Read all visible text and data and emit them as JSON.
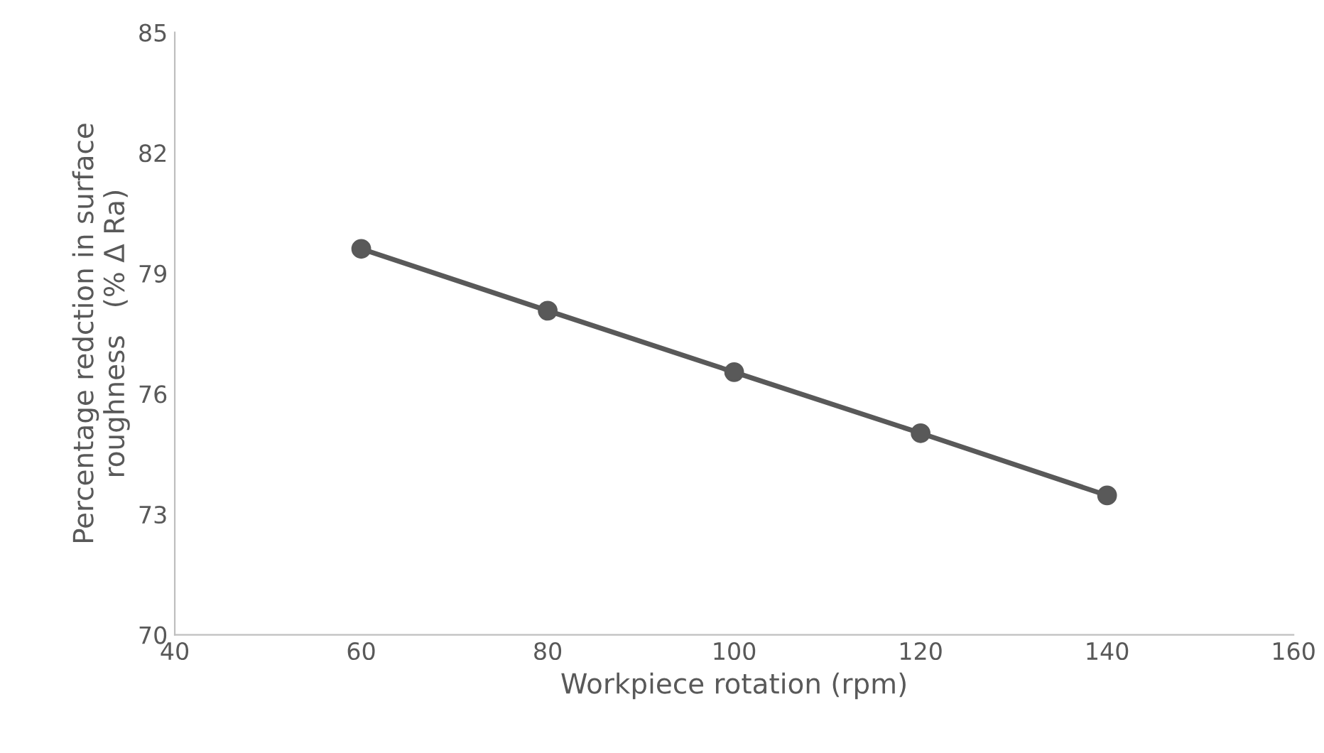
{
  "chart_data": {
    "type": "line",
    "xlabel": "Workpiece rotation (rpm)",
    "ylabel": "Percentage redction in surface\nroughness   (% Δ Ra)",
    "x": [
      60,
      80,
      100,
      120,
      140
    ],
    "series": [
      {
        "color": "#595959",
        "values": [
          79.61,
          78.07,
          76.54,
          75.02,
          73.47
        ]
      }
    ],
    "xlim": [
      40,
      160
    ],
    "xticks": [
      40,
      60,
      80,
      100,
      120,
      140,
      160
    ],
    "ylim": [
      70,
      85
    ],
    "yticks": [
      70,
      73,
      76,
      79,
      82,
      85
    ],
    "marker": "circle",
    "line_style": "solid",
    "grid": false,
    "legend": false
  }
}
